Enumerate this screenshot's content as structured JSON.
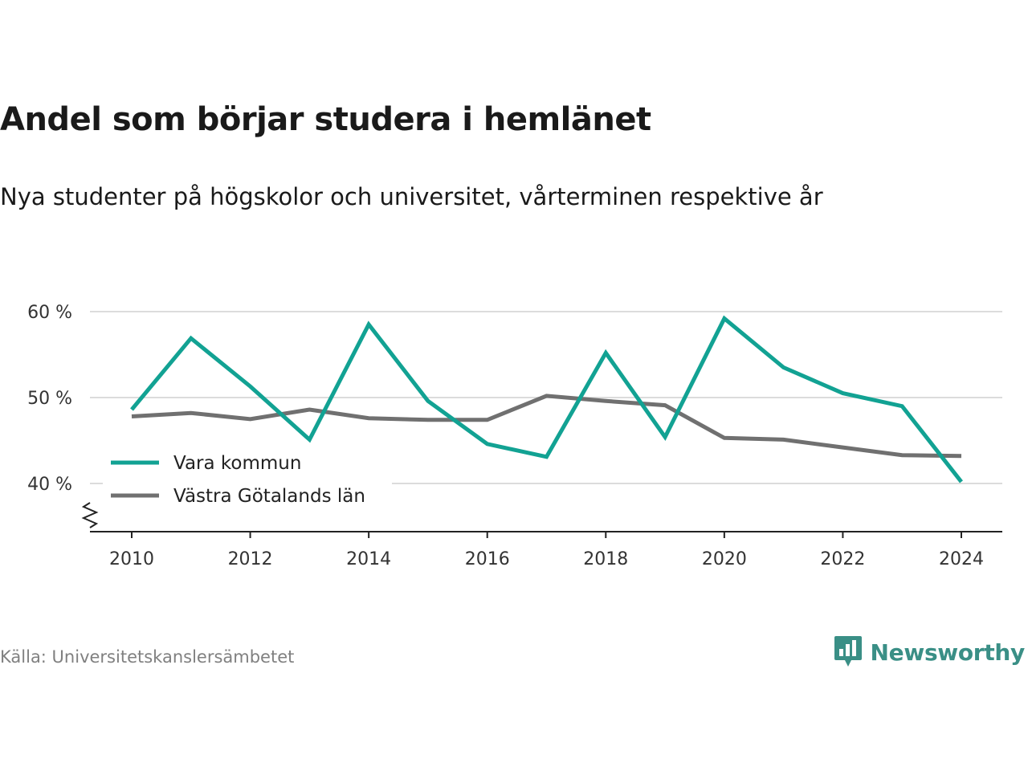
{
  "title": "Andel som börjar studera i hemlänet",
  "subtitle": "Nya studenter på högskolor och universitet, vårterminen respektive år",
  "source": "Källa: Universitetskanslersämbetet",
  "brand": {
    "name": "Newsworthy",
    "icon": "newsworthy-logo-icon",
    "color": "#3a8f86"
  },
  "chart_data": {
    "type": "line",
    "x": [
      2010,
      2011,
      2012,
      2013,
      2014,
      2015,
      2016,
      2017,
      2018,
      2019,
      2020,
      2021,
      2022,
      2023,
      2024
    ],
    "series": [
      {
        "name": "Vara kommun",
        "color": "#12a293",
        "values": [
          48.6,
          56.9,
          51.3,
          45.1,
          58.5,
          49.6,
          44.6,
          43.1,
          55.2,
          45.4,
          59.2,
          53.5,
          50.5,
          49.0,
          40.2
        ]
      },
      {
        "name": "Västra Götalands län",
        "color": "#707070",
        "values": [
          47.8,
          48.2,
          47.5,
          48.6,
          47.6,
          47.4,
          47.4,
          50.2,
          49.6,
          49.1,
          45.3,
          45.1,
          44.2,
          43.3,
          43.2
        ]
      }
    ],
    "xticks": [
      "2010",
      "2012",
      "2014",
      "2016",
      "2018",
      "2020",
      "2022",
      "2024"
    ],
    "yticks": [
      "40 %",
      "50 %",
      "60 %"
    ],
    "ytick_values": [
      40,
      50,
      60
    ],
    "xlim": [
      2009.4,
      2024.7
    ],
    "ylim": [
      34.5,
      62.5
    ],
    "ylabel": "",
    "xlabel": "",
    "grid": true,
    "legend_position": "bottom-left",
    "axis_break": true
  }
}
